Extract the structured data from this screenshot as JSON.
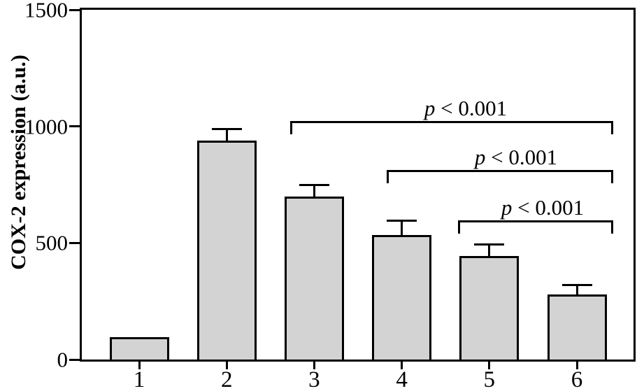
{
  "colors": {
    "background": "#ffffff",
    "bar_fill": "#d3d3d3",
    "line": "#000000"
  },
  "chart_data": {
    "type": "bar",
    "title": "",
    "xlabel": "",
    "ylabel": "COX-2 expression (a.u.)",
    "categories": [
      "1",
      "2",
      "3",
      "4",
      "5",
      "6"
    ],
    "values": [
      95,
      940,
      700,
      535,
      445,
      280
    ],
    "errors": [
      0,
      50,
      50,
      60,
      50,
      40
    ],
    "ylim": [
      0,
      1500
    ],
    "yticks": [
      0,
      500,
      1000,
      1500
    ],
    "grid": false,
    "legend": false,
    "error_bar_direction": "upper-only",
    "annotations": [
      {
        "var": "p",
        "rest": " < 0.001",
        "label": "p < 0.001",
        "from_category": "3",
        "to_category": "6"
      },
      {
        "var": "p",
        "rest": " < 0.001",
        "label": "p < 0.001",
        "from_category": "4",
        "to_category": "6"
      },
      {
        "var": "p",
        "rest": " < 0.001",
        "label": "p < 0.001",
        "from_category": "5",
        "to_category": "6"
      }
    ]
  }
}
